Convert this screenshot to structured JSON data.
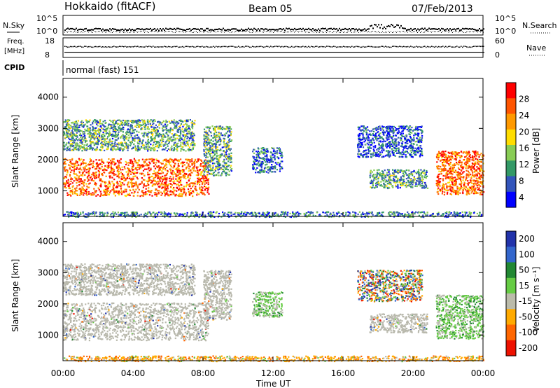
{
  "header": {
    "title": "Hokkaido (fitACF)",
    "beam": "Beam 05",
    "date": "07/Feb/2013"
  },
  "noise_panel": {
    "left_label": "N.Sky",
    "right_label": "N.Search",
    "left_ticks": [
      "10^5",
      "10^0"
    ],
    "right_ticks": [
      "10^5",
      "10^0"
    ]
  },
  "freq_panel": {
    "left_label_line1": "Freq.",
    "left_label_line2": "[MHz]",
    "left_ticks": [
      "18",
      "8"
    ],
    "right_label": "Nave",
    "right_ticks": [
      "60",
      "0"
    ]
  },
  "cpid": {
    "label": "CPID",
    "value": "normal (fast) 151"
  },
  "colors": {
    "power_scale": [
      "#0000ff",
      "#3355bb",
      "#339966",
      "#88cc55",
      "#ffdd00",
      "#ff9900",
      "#ff5500",
      "#ff0000"
    ],
    "velocity_scale": [
      "#2233aa",
      "#3366cc",
      "#228833",
      "#66cc44",
      "#bbbbaa",
      "#ffaa00",
      "#ff6600",
      "#ee1100"
    ],
    "ground_scatter_grey": "#b8b8ac"
  },
  "chart_data": [
    {
      "type": "heatmap",
      "name_id": "power",
      "xlabel": "Time UT",
      "ylabel": "Slant Range [km]",
      "x_ticks": [
        "00:00",
        "04:00",
        "08:00",
        "12:00",
        "16:00",
        "20:00",
        "00:00"
      ],
      "x_range_hours": [
        0,
        24
      ],
      "y_ticks": [
        1000,
        2000,
        3000,
        4000
      ],
      "ylim": [
        180,
        4600
      ],
      "colorbar_label": "Power [dB]",
      "colorbar_ticks": [
        "28",
        "24",
        "20",
        "16",
        "12",
        "8",
        "4"
      ],
      "colorbar_range": [
        0,
        30
      ],
      "regions": [
        {
          "t0": 0.0,
          "t1": 8.3,
          "r0": 850,
          "r1": 2050,
          "level": 24
        },
        {
          "t0": 0.0,
          "t1": 7.5,
          "r0": 2300,
          "r1": 3300,
          "level": 10
        },
        {
          "t0": 8.0,
          "t1": 9.6,
          "r0": 1500,
          "r1": 3100,
          "level": 10
        },
        {
          "t0": 10.8,
          "t1": 12.5,
          "r0": 1600,
          "r1": 2400,
          "level": 6
        },
        {
          "t0": 17.5,
          "t1": 20.8,
          "r0": 1100,
          "r1": 1700,
          "level": 10
        },
        {
          "t0": 16.8,
          "t1": 20.5,
          "r0": 2100,
          "r1": 3100,
          "level": 5
        },
        {
          "t0": 21.3,
          "t1": 24.0,
          "r0": 900,
          "r1": 2300,
          "level": 24
        },
        {
          "t0": 0.0,
          "t1": 24.0,
          "r0": 180,
          "r1": 350,
          "level": 8
        }
      ]
    },
    {
      "type": "heatmap",
      "name_id": "velocity",
      "xlabel": "Time UT",
      "ylabel": "Slant Range [km]",
      "x_ticks": [
        "00:00",
        "04:00",
        "08:00",
        "12:00",
        "16:00",
        "20:00",
        "00:00"
      ],
      "x_range_hours": [
        0,
        24
      ],
      "y_ticks": [
        1000,
        2000,
        3000,
        4000
      ],
      "ylim": [
        180,
        4600
      ],
      "colorbar_label": "Velocity [m s⁻¹]",
      "colorbar_ticks": [
        "200",
        "100",
        "50",
        "15",
        "-15",
        "-50",
        "-100",
        "-200"
      ],
      "colorbar_range": [
        -250,
        250
      ],
      "regions": [
        {
          "t0": 0.0,
          "t1": 8.3,
          "r0": 850,
          "r1": 2050,
          "kind": "ground"
        },
        {
          "t0": 0.0,
          "t1": 7.5,
          "r0": 2300,
          "r1": 3300,
          "kind": "ground"
        },
        {
          "t0": 8.0,
          "t1": 9.6,
          "r0": 1500,
          "r1": 3100,
          "kind": "ground"
        },
        {
          "t0": 10.8,
          "t1": 12.5,
          "r0": 1600,
          "r1": 2400,
          "kind": "slow"
        },
        {
          "t0": 17.5,
          "t1": 20.8,
          "r0": 1100,
          "r1": 1700,
          "kind": "ground"
        },
        {
          "t0": 16.8,
          "t1": 20.5,
          "r0": 2100,
          "r1": 3100,
          "kind": "mixed"
        },
        {
          "t0": 21.3,
          "t1": 24.0,
          "r0": 900,
          "r1": 2300,
          "kind": "slow"
        },
        {
          "t0": 0.0,
          "t1": 24.0,
          "r0": 180,
          "r1": 350,
          "kind": "negative"
        }
      ]
    }
  ]
}
